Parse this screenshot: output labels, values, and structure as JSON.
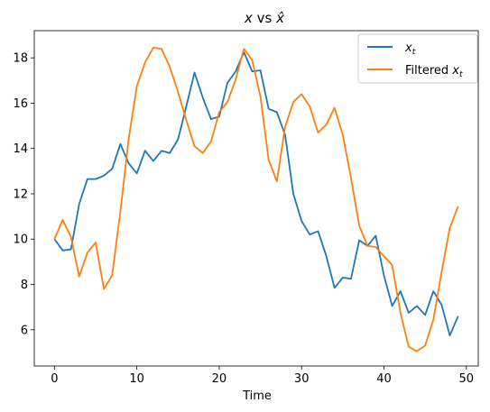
{
  "chart_data": {
    "type": "line",
    "title": "x vs x̂",
    "xlabel": "Time",
    "ylabel": "",
    "xlim": [
      -2.45,
      51.45
    ],
    "ylim": [
      4.4,
      19.2
    ],
    "xticks": [
      0,
      10,
      20,
      30,
      40,
      50
    ],
    "yticks": [
      6,
      8,
      10,
      12,
      14,
      16,
      18
    ],
    "grid": false,
    "legend_position": "top-right",
    "series": [
      {
        "name": "x_t",
        "color": "#1f77b4",
        "x": [
          0,
          1,
          2,
          3,
          4,
          5,
          6,
          7,
          8,
          9,
          10,
          11,
          12,
          13,
          14,
          15,
          16,
          17,
          18,
          19,
          20,
          21,
          22,
          23,
          24,
          25,
          26,
          27,
          28,
          29,
          30,
          31,
          32,
          33,
          34,
          35,
          36,
          37,
          38,
          39,
          40,
          41,
          42,
          43,
          44,
          45,
          46,
          47,
          48,
          49
        ],
        "values": [
          10.0,
          9.5,
          9.55,
          11.55,
          12.65,
          12.65,
          12.8,
          13.1,
          14.2,
          13.35,
          12.9,
          13.9,
          13.45,
          13.9,
          13.8,
          14.4,
          15.85,
          17.35,
          16.25,
          15.3,
          15.4,
          16.9,
          17.4,
          18.25,
          17.4,
          17.45,
          15.75,
          15.6,
          14.6,
          12.0,
          10.8,
          10.2,
          10.35,
          9.25,
          7.85,
          8.3,
          8.25,
          9.95,
          9.7,
          10.15,
          8.4,
          7.05,
          7.7,
          6.75,
          7.05,
          6.65,
          7.7,
          7.1,
          5.75,
          6.6
        ]
      },
      {
        "name": "Filtered x_t",
        "color": "#ff7f0e",
        "x": [
          0,
          1,
          2,
          3,
          4,
          5,
          6,
          7,
          8,
          9,
          10,
          11,
          12,
          13,
          14,
          15,
          16,
          17,
          18,
          19,
          20,
          21,
          22,
          23,
          24,
          25,
          26,
          27,
          28,
          29,
          30,
          31,
          32,
          33,
          34,
          35,
          36,
          37,
          38,
          39,
          40,
          41,
          42,
          43,
          44,
          45,
          46,
          47,
          48,
          49
        ],
        "values": [
          10.0,
          10.85,
          10.1,
          8.35,
          9.4,
          9.85,
          7.8,
          8.4,
          11.2,
          14.4,
          16.75,
          17.8,
          18.45,
          18.4,
          17.6,
          16.5,
          15.25,
          14.1,
          13.8,
          14.3,
          15.6,
          16.05,
          17.05,
          18.4,
          17.9,
          16.3,
          13.5,
          12.55,
          14.95,
          16.05,
          16.4,
          15.85,
          14.7,
          15.05,
          15.8,
          14.6,
          12.7,
          10.6,
          9.7,
          9.65,
          9.25,
          8.85,
          6.75,
          5.25,
          5.05,
          5.3,
          6.45,
          8.55,
          10.5,
          11.45
        ]
      }
    ]
  }
}
